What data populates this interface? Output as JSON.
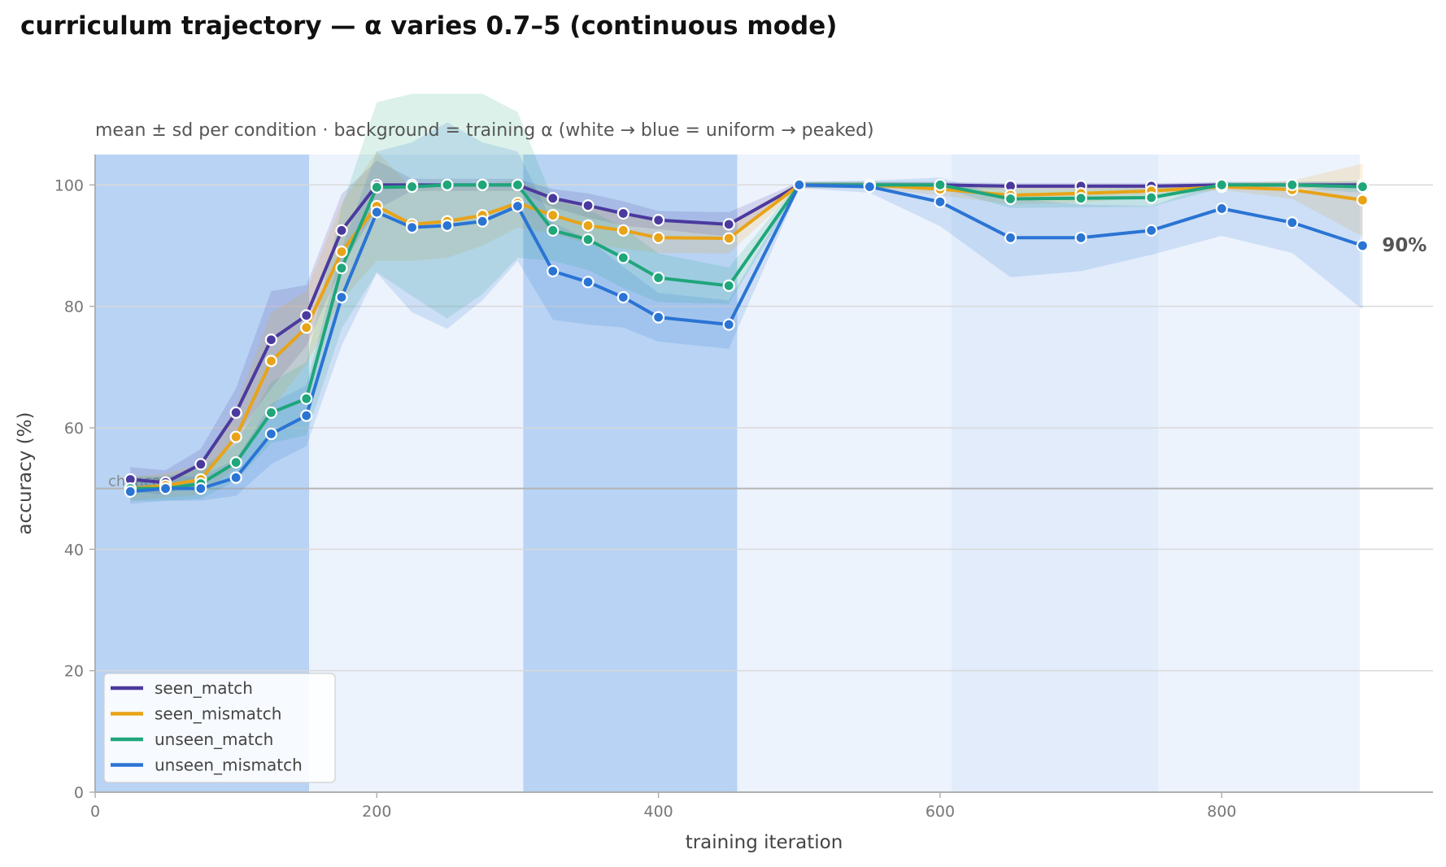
{
  "title": "curriculum trajectory — α varies 0.7–5 (continuous mode)",
  "chart_data": {
    "type": "line",
    "subtitle": "mean ± sd per condition · background = training α (white → blue = uniform → peaked)",
    "xlabel": "training iteration",
    "ylabel": "accuracy (%)",
    "xlim": [
      0,
      950
    ],
    "ylim": [
      0,
      105
    ],
    "xticks": [
      0,
      200,
      400,
      600,
      800
    ],
    "yticks": [
      0,
      20,
      40,
      60,
      80,
      100
    ],
    "grid": "horizontal",
    "legend_position": "lower-left",
    "chance": {
      "value": 50,
      "label": "chance"
    },
    "background_bands": [
      {
        "x0": 0,
        "x1": 152,
        "color": "#b8d3f4"
      },
      {
        "x0": 152,
        "x1": 304,
        "color": "#ecf3fd"
      },
      {
        "x0": 304,
        "x1": 456,
        "color": "#b8d3f4"
      },
      {
        "x0": 456,
        "x1": 608,
        "color": "#ecf3fd"
      },
      {
        "x0": 608,
        "x1": 755,
        "color": "#e2ecfb"
      },
      {
        "x0": 755,
        "x1": 898,
        "color": "#ecf3fd"
      }
    ],
    "x": [
      25,
      50,
      75,
      100,
      125,
      150,
      175,
      200,
      225,
      250,
      275,
      300,
      325,
      350,
      375,
      400,
      450,
      500,
      550,
      600,
      650,
      700,
      750,
      800,
      850,
      900
    ],
    "series": [
      {
        "name": "seen_match",
        "color": "#4b3a9e",
        "values": [
          51.5,
          51,
          54,
          62.5,
          74.5,
          78.5,
          92.5,
          100,
          100,
          100,
          100,
          100,
          97.8,
          96.6,
          95.3,
          94.2,
          93.5,
          100,
          100,
          100,
          99.8,
          99.8,
          99.8,
          100,
          100,
          100
        ],
        "sd": [
          2,
          2,
          2.5,
          4,
          8,
          5,
          6,
          4,
          1,
          1,
          1,
          1,
          1.5,
          2,
          2,
          1.5,
          2,
          0.5,
          0.5,
          0.5,
          0.5,
          0.5,
          0.5,
          0.5,
          0.5,
          0.5
        ]
      },
      {
        "name": "seen_mismatch",
        "color": "#e8a317",
        "values": [
          50,
          50.5,
          51.5,
          58.5,
          71,
          76.5,
          89,
          96.5,
          93.5,
          94,
          95,
          97,
          95,
          93.3,
          92.5,
          91.3,
          91.2,
          100,
          100,
          99.3,
          98.3,
          98.6,
          99,
          99.7,
          99.2,
          97.5
        ],
        "sd": [
          2,
          2,
          2.5,
          5,
          8,
          6,
          8,
          9,
          6,
          6,
          5,
          4,
          3,
          3,
          3,
          2.5,
          2.5,
          0.5,
          0.5,
          1,
          1.5,
          1.5,
          1,
          0.5,
          1.5,
          6
        ]
      },
      {
        "name": "unseen_match",
        "color": "#1fa67a",
        "values": [
          50,
          50,
          50.8,
          54.3,
          62.5,
          64.8,
          86.3,
          99.6,
          99.7,
          100,
          100,
          100,
          92.5,
          91,
          88,
          84.7,
          83.4,
          100,
          100,
          100,
          97.7,
          97.8,
          97.9,
          100,
          100,
          99.7
        ],
        "sd": [
          2,
          2,
          2.5,
          3,
          5,
          6,
          10,
          14,
          18,
          22,
          18,
          12,
          5,
          5,
          5,
          4,
          3,
          0.5,
          0.5,
          0.5,
          1.5,
          1.5,
          1.5,
          0.5,
          0.5,
          1
        ]
      },
      {
        "name": "unseen_mismatch",
        "color": "#2a74d4",
        "values": [
          49.5,
          50,
          50,
          51.8,
          59,
          62,
          81.5,
          95.5,
          93,
          93.3,
          94,
          96.5,
          85.8,
          84,
          81.5,
          78.2,
          77,
          100,
          99.7,
          97.2,
          91.3,
          91.3,
          92.5,
          96.1,
          93.8,
          90
        ],
        "sd": [
          2,
          2,
          2,
          3,
          5,
          5,
          8,
          10,
          14,
          17,
          13,
          9,
          8,
          7,
          5,
          4,
          4,
          0.5,
          1,
          4,
          6.5,
          5.5,
          4,
          4.5,
          5,
          10.5
        ]
      }
    ],
    "end_label": "90%"
  }
}
